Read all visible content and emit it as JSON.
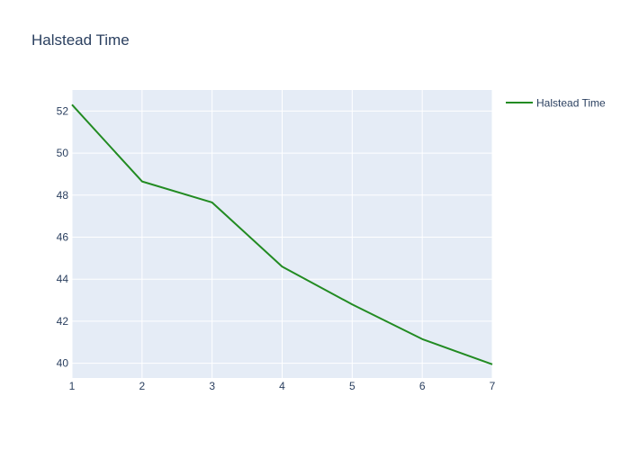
{
  "chart_data": {
    "type": "line",
    "title": "Halstead Time",
    "xlabel": "",
    "ylabel": "",
    "x": [
      1,
      2,
      3,
      4,
      5,
      6,
      7
    ],
    "series": [
      {
        "name": "Halstead Time",
        "values": [
          52.3,
          48.65,
          47.65,
          44.6,
          42.8,
          41.15,
          39.95
        ],
        "color": "#228b22"
      }
    ],
    "xlim": [
      1,
      7
    ],
    "ylim": [
      39.3,
      53
    ],
    "xticks": [
      1,
      2,
      3,
      4,
      5,
      6,
      7
    ],
    "yticks": [
      40,
      42,
      44,
      46,
      48,
      50,
      52
    ],
    "grid": true,
    "plot_background": "#e5ecf6",
    "legend_position": "top-right"
  }
}
